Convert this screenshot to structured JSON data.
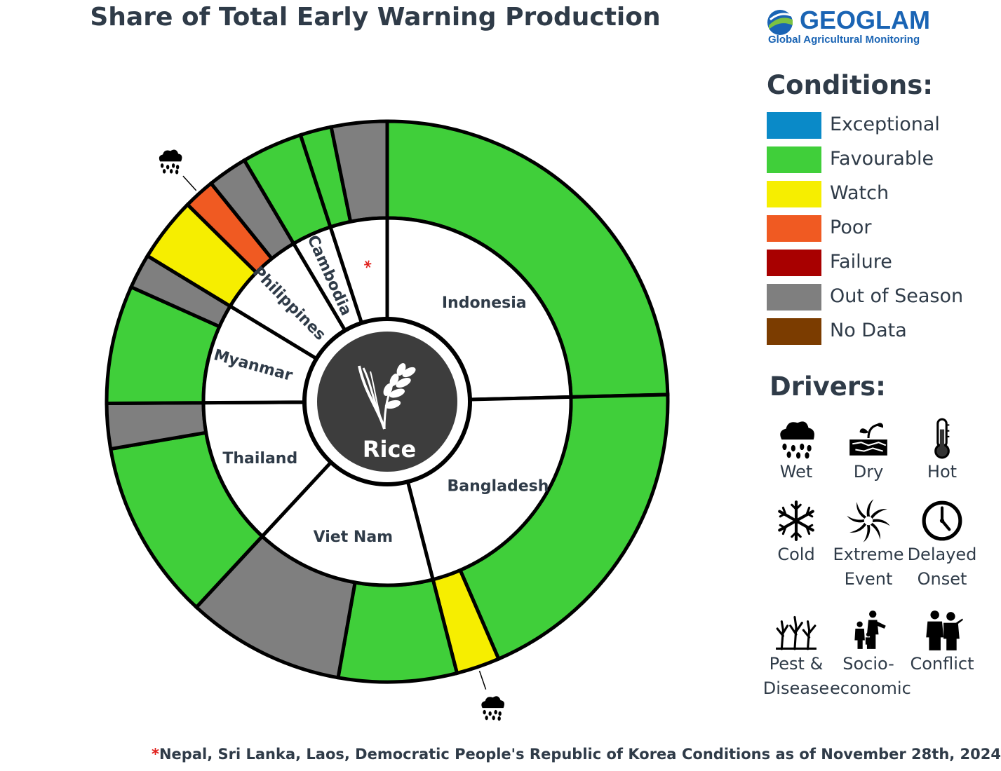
{
  "title": "Share of Total Early Warning Production",
  "logo": {
    "name": "GEOGLAM",
    "tagline": "Global Agricultural Monitoring"
  },
  "colors": {
    "Exceptional": "#0a8ac8",
    "Favourable": "#40cf3a",
    "Watch": "#f6ee00",
    "Poor": "#f05a22",
    "Failure": "#a80000",
    "Out of Season": "#7f7f7f",
    "No Data": "#7b3c00"
  },
  "legend": {
    "heading": "Conditions:",
    "items": [
      "Exceptional",
      "Favourable",
      "Watch",
      "Poor",
      "Failure",
      "Out of Season",
      "No Data"
    ]
  },
  "drivers": {
    "heading": "Drivers:",
    "items": [
      {
        "icon": "wet-icon",
        "lines": [
          "Wet"
        ]
      },
      {
        "icon": "dry-icon",
        "lines": [
          "Dry"
        ]
      },
      {
        "icon": "hot-icon",
        "lines": [
          "Hot"
        ]
      },
      {
        "icon": "cold-icon",
        "lines": [
          "Cold"
        ]
      },
      {
        "icon": "extreme-event-icon",
        "lines": [
          "Extreme",
          "Event"
        ]
      },
      {
        "icon": "delayed-onset-icon",
        "lines": [
          "Delayed",
          "Onset"
        ]
      },
      {
        "icon": "pest-disease-icon",
        "lines": [
          "Pest &",
          "Disease"
        ]
      },
      {
        "icon": "socio-economic-icon",
        "lines": [
          "Socio-",
          "economic"
        ]
      },
      {
        "icon": "conflict-icon",
        "lines": [
          "Conflict"
        ]
      }
    ]
  },
  "center_label": "Rice",
  "footnote": {
    "star": "*",
    "text": "Nepal, Sri Lanka, Laos, Democratic People's Republic of Korea"
  },
  "as_of": "Conditions as of November 28th, 2024",
  "chart_data": {
    "type": "sunburst",
    "unit": "share of total production (%)",
    "inner_ring": [
      {
        "country": "Indonesia",
        "share": 24.6
      },
      {
        "country": "Bangladesh",
        "share": 21.4
      },
      {
        "country": "Viet Nam",
        "share": 15.9
      },
      {
        "country": "Thailand",
        "share": 13.0
      },
      {
        "country": "Myanmar",
        "share": 8.8
      },
      {
        "country": "Philippines",
        "share": 7.8
      },
      {
        "country": "Cambodia",
        "share": 3.5
      },
      {
        "country": "*",
        "share": 5.0
      }
    ],
    "outer_ring": [
      {
        "country": "Indonesia",
        "condition": "Favourable",
        "share": 24.6
      },
      {
        "country": "Bangladesh",
        "condition": "Favourable",
        "share": 18.9
      },
      {
        "country": "Bangladesh",
        "condition": "Watch",
        "share": 2.5,
        "driver": "wet-icon"
      },
      {
        "country": "Viet Nam",
        "condition": "Favourable",
        "share": 6.8
      },
      {
        "country": "Viet Nam",
        "condition": "Out of Season",
        "share": 9.1
      },
      {
        "country": "Thailand",
        "condition": "Favourable",
        "share": 10.4
      },
      {
        "country": "Thailand",
        "condition": "Out of Season",
        "share": 2.6
      },
      {
        "country": "Myanmar",
        "condition": "Favourable",
        "share": 6.8
      },
      {
        "country": "Myanmar",
        "condition": "Out of Season",
        "share": 2.0
      },
      {
        "country": "Philippines",
        "condition": "Watch",
        "share": 3.7
      },
      {
        "country": "Philippines",
        "condition": "Poor",
        "share": 1.8,
        "driver": "wet-icon"
      },
      {
        "country": "Philippines",
        "condition": "Out of Season",
        "share": 2.3
      },
      {
        "country": "Cambodia",
        "condition": "Favourable",
        "share": 3.5
      },
      {
        "country": "*",
        "condition": "Favourable",
        "share": 1.8
      },
      {
        "country": "*",
        "condition": "Out of Season",
        "share": 3.2
      }
    ]
  }
}
